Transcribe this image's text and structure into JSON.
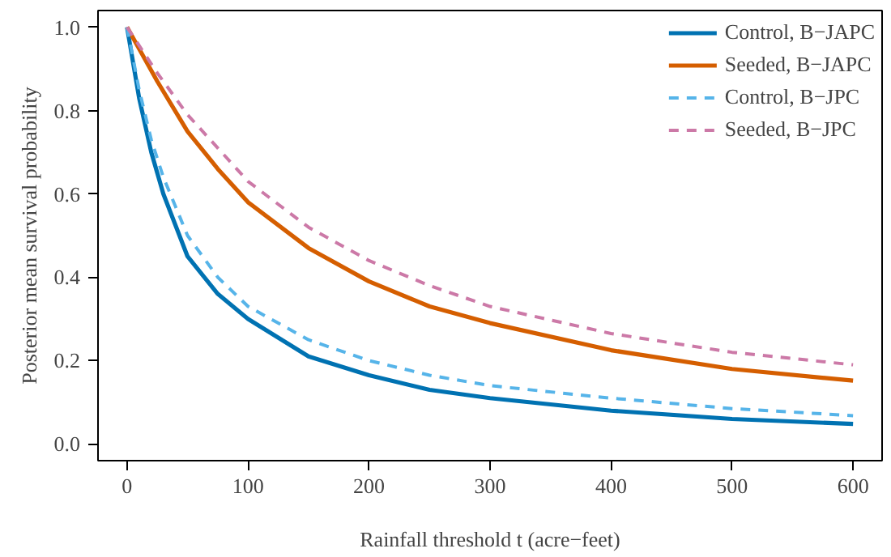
{
  "chart_data": {
    "type": "line",
    "xlabel": "Rainfall threshold t (acre−feet)",
    "ylabel": "Posterior mean survival probability",
    "xlim": [
      -24,
      624
    ],
    "ylim": [
      -0.04,
      1.04
    ],
    "xticks": [
      0,
      100,
      200,
      300,
      400,
      500,
      600
    ],
    "yticks": [
      {
        "value": 0,
        "label": "0.0"
      },
      0.2,
      0.4,
      0.6,
      0.8,
      {
        "value": 1,
        "label": "1.0"
      }
    ],
    "grid": false,
    "legend": "top right",
    "marker": "none",
    "series": [
      {
        "name": "Control, B−JAPC",
        "color": "#0072b2",
        "line_style": "solid",
        "x": [
          0,
          10,
          20,
          30,
          50,
          75,
          100,
          150,
          200,
          250,
          300,
          400,
          500,
          600
        ],
        "values": [
          1,
          0.83,
          0.7,
          0.6,
          0.45,
          0.36,
          0.3,
          0.21,
          0.165,
          0.13,
          0.11,
          0.08,
          0.06,
          0.048
        ]
      },
      {
        "name": "Seeded, B−JAPC",
        "color": "#d55e00",
        "line_style": "solid",
        "x": [
          0,
          25,
          50,
          75,
          100,
          150,
          200,
          250,
          300,
          400,
          500,
          600
        ],
        "values": [
          1,
          0.87,
          0.75,
          0.66,
          0.58,
          0.47,
          0.39,
          0.33,
          0.29,
          0.225,
          0.18,
          0.152
        ]
      },
      {
        "name": "Control, B−JPC",
        "color": "#56b4e9",
        "line_style": "dashed",
        "x": [
          0,
          10,
          20,
          30,
          50,
          75,
          100,
          150,
          200,
          250,
          300,
          400,
          500,
          600
        ],
        "values": [
          1,
          0.85,
          0.73,
          0.64,
          0.5,
          0.4,
          0.33,
          0.25,
          0.2,
          0.165,
          0.14,
          0.11,
          0.085,
          0.068
        ]
      },
      {
        "name": "Seeded, B−JPC",
        "color": "#cc79a7",
        "line_style": "dashed",
        "x": [
          0,
          25,
          50,
          75,
          100,
          150,
          200,
          250,
          300,
          400,
          500,
          600
        ],
        "values": [
          1,
          0.89,
          0.79,
          0.71,
          0.63,
          0.52,
          0.44,
          0.38,
          0.33,
          0.265,
          0.22,
          0.19
        ]
      }
    ]
  }
}
